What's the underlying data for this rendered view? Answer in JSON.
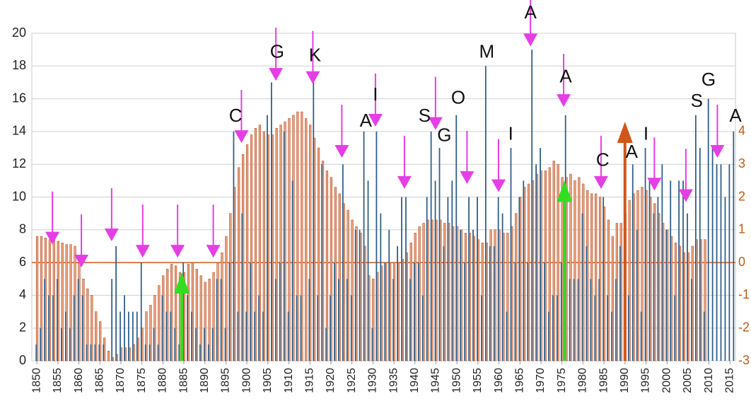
{
  "chart_data": {
    "type": "bar",
    "xlim": [
      1848.8,
      2016.3
    ],
    "xticks": [
      1850,
      1855,
      1860,
      1865,
      1870,
      1875,
      1880,
      1885,
      1890,
      1895,
      1900,
      1905,
      1910,
      1915,
      1920,
      1925,
      1930,
      1935,
      1940,
      1945,
      1950,
      1955,
      1960,
      1965,
      1970,
      1975,
      1980,
      1985,
      1990,
      1995,
      2000,
      2005,
      2010,
      2015
    ],
    "ylim": [
      0,
      20
    ],
    "yticks": [
      0,
      2,
      4,
      6,
      8,
      10,
      12,
      14,
      16,
      18,
      20
    ],
    "y2lim": [
      -3,
      7
    ],
    "y2ticks": [
      -3,
      -2,
      -1,
      0,
      1,
      2,
      3,
      4
    ],
    "grid": true,
    "y2_zero_line": true,
    "x": [
      1850,
      1851,
      1852,
      1853,
      1854,
      1855,
      1856,
      1857,
      1858,
      1859,
      1860,
      1861,
      1862,
      1863,
      1864,
      1865,
      1866,
      1867,
      1868,
      1869,
      1870,
      1871,
      1872,
      1873,
      1874,
      1875,
      1876,
      1877,
      1878,
      1879,
      1880,
      1881,
      1882,
      1883,
      1884,
      1885,
      1886,
      1887,
      1888,
      1889,
      1890,
      1891,
      1892,
      1893,
      1894,
      1895,
      1896,
      1897,
      1898,
      1899,
      1900,
      1901,
      1902,
      1903,
      1904,
      1905,
      1906,
      1907,
      1908,
      1909,
      1910,
      1911,
      1912,
      1913,
      1914,
      1915,
      1916,
      1917,
      1918,
      1919,
      1920,
      1921,
      1922,
      1923,
      1924,
      1925,
      1926,
      1927,
      1928,
      1929,
      1930,
      1931,
      1932,
      1933,
      1934,
      1935,
      1936,
      1937,
      1938,
      1939,
      1940,
      1941,
      1942,
      1943,
      1944,
      1945,
      1946,
      1947,
      1948,
      1949,
      1950,
      1951,
      1952,
      1953,
      1954,
      1955,
      1956,
      1957,
      1958,
      1959,
      1960,
      1961,
      1962,
      1963,
      1964,
      1965,
      1966,
      1967,
      1968,
      1969,
      1970,
      1971,
      1972,
      1973,
      1974,
      1975,
      1976,
      1977,
      1978,
      1979,
      1980,
      1981,
      1982,
      1983,
      1984,
      1985,
      1986,
      1987,
      1988,
      1989,
      1990,
      1991,
      1992,
      1993,
      1994,
      1995,
      1996,
      1997,
      1998,
      1999,
      2000,
      2001,
      2002,
      2003,
      2004,
      2005,
      2006,
      2007,
      2008,
      2009,
      2010,
      2011,
      2012,
      2013,
      2014,
      2015,
      2016
    ],
    "series": [
      {
        "color": "#2e5f8a",
        "values": [
          1,
          2,
          5,
          4,
          4,
          5,
          2,
          3,
          2,
          4,
          5,
          4,
          1,
          1,
          1,
          1,
          1,
          0,
          5,
          7,
          3,
          4,
          3,
          3,
          3,
          6,
          1,
          1,
          2,
          1,
          4,
          3,
          3,
          2,
          1,
          6,
          4,
          3,
          2,
          1,
          2,
          1,
          2,
          5,
          5,
          2,
          6,
          14,
          3,
          9,
          3,
          6,
          3,
          4,
          3,
          15,
          17,
          5,
          6,
          14,
          3,
          11,
          4,
          4,
          0,
          5,
          17,
          4,
          12,
          2,
          4,
          6,
          5,
          12,
          5,
          4,
          8,
          8,
          14,
          11,
          2,
          14,
          9,
          6,
          8,
          5,
          7,
          10,
          10,
          5,
          6,
          6,
          4,
          10,
          14,
          11,
          13,
          7,
          10,
          11,
          15,
          8,
          6,
          10,
          8,
          10,
          4,
          18,
          7,
          7,
          10,
          9,
          3,
          13,
          6,
          10,
          11,
          6,
          19,
          12,
          13,
          6,
          3,
          4,
          4,
          6,
          15,
          5,
          5,
          5,
          9,
          7,
          5,
          4,
          5,
          10,
          4,
          3,
          5,
          7,
          8,
          4,
          12,
          8,
          3,
          13,
          11,
          9,
          10,
          12,
          8,
          11,
          4,
          11,
          11,
          9,
          5,
          15,
          13,
          3,
          16,
          13,
          12,
          12,
          10,
          12,
          14
        ]
      },
      {
        "color": "#eaa27e",
        "axis": "y2",
        "values": [
          0.8,
          0.8,
          0.75,
          0.7,
          0.7,
          0.65,
          0.6,
          0.55,
          0.55,
          0.5,
          0,
          -0.5,
          -0.8,
          -1,
          -1.5,
          -1.8,
          -2.3,
          -2.7,
          -2.9,
          -2.8,
          -2.6,
          -2.6,
          -2.6,
          -2.5,
          -2.3,
          -2,
          -1.5,
          -1.3,
          -1,
          -0.7,
          -0.4,
          -0.2,
          -0.05,
          -0.1,
          -0.3,
          -0.3,
          -0.05,
          0,
          -0.2,
          -0.4,
          -0.6,
          -0.5,
          -0.3,
          0,
          0.3,
          0.8,
          1.5,
          2.3,
          2.9,
          3.3,
          3.6,
          3.9,
          4.1,
          4.2,
          4,
          3.9,
          3.9,
          4.1,
          4.2,
          4.3,
          4.4,
          4.5,
          4.6,
          4.6,
          4.4,
          4.2,
          3.8,
          3.5,
          3.1,
          2.8,
          2.6,
          2.3,
          2.1,
          1.8,
          1.6,
          1.3,
          1.1,
          0.9,
          0.5,
          -0.4,
          -0.5,
          -0.3,
          -0.1,
          0,
          0,
          0,
          0,
          0.1,
          0.3,
          0.6,
          0.9,
          1.1,
          1.2,
          1.3,
          1.3,
          1.3,
          1.3,
          1.2,
          1.2,
          1.1,
          1.1,
          1,
          0.9,
          0.9,
          0.8,
          0.7,
          0.6,
          0.6,
          1,
          1,
          1,
          0.9,
          0.9,
          1.1,
          1.5,
          2,
          2.3,
          2.4,
          2.5,
          2.7,
          2.8,
          2.8,
          2.9,
          3.1,
          3,
          2.6,
          2.6,
          2.7,
          2.5,
          2.6,
          2.4,
          2.2,
          2.1,
          2.1,
          2,
          1.7,
          1.3,
          0.8,
          1.2,
          1.2,
          1.5,
          1.9,
          2.1,
          2.2,
          2.3,
          2.2,
          2,
          1.8,
          1.5,
          1.2,
          1,
          0.8,
          0.6,
          0.5,
          0.3,
          0.3,
          0.5,
          0.7,
          0.7,
          0.7,
          null,
          null,
          null,
          null,
          null,
          null,
          null
        ]
      }
    ],
    "arrows": [
      {
        "x": 1853.7,
        "y": 7.1
      },
      {
        "x": 1860.6,
        "y": 5.7
      },
      {
        "x": 1867.8,
        "y": 7.3
      },
      {
        "x": 1875.2,
        "y": 6.3
      },
      {
        "x": 1883.5,
        "y": 6.3
      },
      {
        "x": 1892,
        "y": 6.3
      },
      {
        "x": 1898.7,
        "y": 13.3
      },
      {
        "x": 1906.9,
        "y": 17.1
      },
      {
        "x": 1915.7,
        "y": 16.9
      },
      {
        "x": 1922.6,
        "y": 12.4
      },
      {
        "x": 1930.6,
        "y": 14.3
      },
      {
        "x": 1937.5,
        "y": 10.5
      },
      {
        "x": 1944.9,
        "y": 14.1
      },
      {
        "x": 1952.4,
        "y": 10.8
      },
      {
        "x": 1959.9,
        "y": 10.3
      },
      {
        "x": 1967.5,
        "y": 19.2
      },
      {
        "x": 1975.4,
        "y": 15.5
      },
      {
        "x": 1984.3,
        "y": 10.5
      },
      {
        "x": 1997,
        "y": 10.4
      },
      {
        "x": 2004.5,
        "y": 9.7
      },
      {
        "x": 2012,
        "y": 12.4
      }
    ],
    "up_arrows": [
      {
        "x": 1884.5,
        "y": 5.4,
        "color": "#33dd22"
      },
      {
        "x": 1975.6,
        "y": 11,
        "color": "#33dd22"
      },
      {
        "x": 1990,
        "y": 14.6,
        "color": "#d0561a"
      }
    ],
    "letters": [
      {
        "text": "C",
        "x": 1897.3,
        "y": 14.9
      },
      {
        "text": "G",
        "x": 1907.2,
        "y": 18.8
      },
      {
        "text": "K",
        "x": 1916.2,
        "y": 18.6
      },
      {
        "text": "A",
        "x": 1928.3,
        "y": 14.6
      },
      {
        "text": "I",
        "x": 1930.6,
        "y": 16.2
      },
      {
        "text": "S",
        "x": 1942.3,
        "y": 14.9
      },
      {
        "text": "G",
        "x": 1947,
        "y": 13.7
      },
      {
        "text": "O",
        "x": 1950.3,
        "y": 16
      },
      {
        "text": "M",
        "x": 1957.1,
        "y": 18.8
      },
      {
        "text": "I",
        "x": 1962.8,
        "y": 13.8
      },
      {
        "text": "A",
        "x": 1967.5,
        "y": 21.2
      },
      {
        "text": "A",
        "x": 1975.9,
        "y": 17.3
      },
      {
        "text": "C",
        "x": 1984.7,
        "y": 12.2
      },
      {
        "text": "A",
        "x": 1991.6,
        "y": 12.7
      },
      {
        "text": "I",
        "x": 1995,
        "y": 13.8
      },
      {
        "text": "S",
        "x": 2007.1,
        "y": 15.8
      },
      {
        "text": "G",
        "x": 2009.9,
        "y": 17.1
      },
      {
        "text": "A",
        "x": 2016.3,
        "y": 14.9
      }
    ]
  }
}
